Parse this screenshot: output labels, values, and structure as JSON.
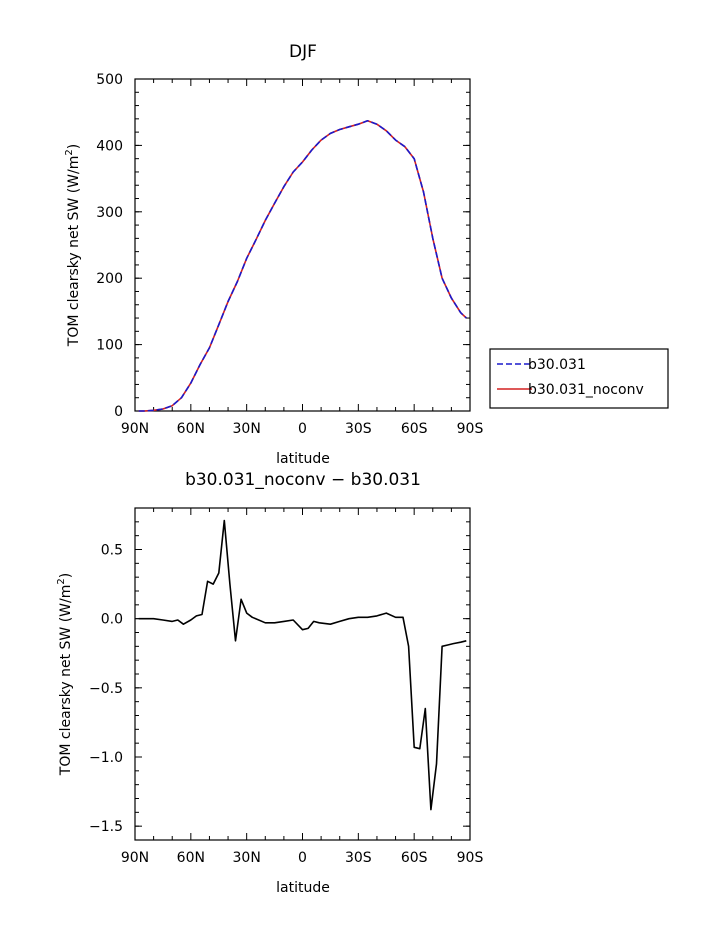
{
  "chart_data": [
    {
      "type": "line",
      "title": "DJF",
      "xlabel": "latitude",
      "ylabel": "TOM clearsky net SW (W/m",
      "ylabel_sup": "2",
      "ylabel_close": ")",
      "xlim": [
        -90,
        90
      ],
      "ylim": [
        0,
        500
      ],
      "x_ticks": [
        -90,
        -60,
        -30,
        0,
        30,
        60,
        90
      ],
      "x_tick_labels": [
        "90N",
        "60N",
        "30N",
        "0",
        "30S",
        "60S",
        "90S"
      ],
      "y_ticks": [
        0,
        100,
        200,
        300,
        400,
        500
      ],
      "y_tick_labels": [
        "0",
        "100",
        "200",
        "300",
        "400",
        "500"
      ],
      "legend_position": "right",
      "series": [
        {
          "name": "b30.031",
          "color": "#1a1acc",
          "style": "dashed",
          "x": [
            -88,
            -85,
            -80,
            -75,
            -70,
            -65,
            -60,
            -55,
            -50,
            -45,
            -40,
            -35,
            -30,
            -25,
            -20,
            -15,
            -10,
            -5,
            0,
            5,
            10,
            15,
            20,
            25,
            30,
            35,
            40,
            45,
            50,
            55,
            60,
            62,
            65,
            70,
            75,
            80,
            85,
            88
          ],
          "y": [
            0,
            0,
            1,
            3,
            8,
            20,
            42,
            70,
            95,
            130,
            165,
            195,
            230,
            258,
            287,
            313,
            338,
            360,
            375,
            393,
            408,
            418,
            424,
            428,
            432,
            437,
            432,
            422,
            408,
            398,
            380,
            360,
            330,
            260,
            200,
            170,
            148,
            140
          ]
        },
        {
          "name": "b30.031_noconv",
          "color": "#d42020",
          "style": "solid",
          "x": [
            -88,
            -85,
            -80,
            -75,
            -70,
            -65,
            -60,
            -55,
            -50,
            -45,
            -40,
            -35,
            -30,
            -25,
            -20,
            -15,
            -10,
            -5,
            0,
            5,
            10,
            15,
            20,
            25,
            30,
            35,
            40,
            45,
            50,
            55,
            60,
            62,
            65,
            70,
            75,
            80,
            85,
            88
          ],
          "y": [
            0,
            0,
            1,
            3,
            8,
            20,
            42,
            70,
            95,
            130,
            165,
            195,
            230,
            258,
            287,
            313,
            338,
            360,
            375,
            393,
            408,
            418,
            424,
            428,
            432,
            437,
            432,
            422,
            408,
            398,
            380,
            360,
            330,
            260,
            200,
            170,
            148,
            140
          ]
        }
      ]
    },
    {
      "type": "line",
      "title": "b30.031_noconv − b30.031",
      "xlabel": "latitude",
      "ylabel": "TOM clearsky net SW (W/m",
      "ylabel_sup": "2",
      "ylabel_close": ")",
      "xlim": [
        -90,
        90
      ],
      "ylim": [
        -1.6,
        0.8
      ],
      "x_ticks": [
        -90,
        -60,
        -30,
        0,
        30,
        60,
        90
      ],
      "x_tick_labels": [
        "90N",
        "60N",
        "30N",
        "0",
        "30S",
        "60S",
        "90S"
      ],
      "y_ticks": [
        -1.5,
        -1.0,
        -0.5,
        0.0,
        0.5
      ],
      "y_tick_labels": [
        "−1.5",
        "−1.0",
        "−0.5",
        "0.0",
        "0.5"
      ],
      "series": [
        {
          "color": "#000000",
          "style": "solid",
          "x": [
            -88,
            -80,
            -75,
            -70,
            -67,
            -64,
            -60,
            -57,
            -54,
            -51,
            -48,
            -45,
            -42,
            -39,
            -36,
            -33,
            -30,
            -27,
            -20,
            -15,
            -10,
            -5,
            0,
            3,
            6,
            9,
            15,
            20,
            25,
            30,
            35,
            40,
            45,
            50,
            54,
            57,
            60,
            63,
            66,
            69,
            72,
            75,
            78,
            81,
            85,
            88
          ],
          "y": [
            0.0,
            0.0,
            -0.01,
            -0.02,
            -0.01,
            -0.04,
            -0.01,
            0.02,
            0.03,
            0.27,
            0.25,
            0.33,
            0.71,
            0.25,
            -0.16,
            0.14,
            0.04,
            0.01,
            -0.03,
            -0.03,
            -0.02,
            -0.01,
            -0.08,
            -0.07,
            -0.02,
            -0.03,
            -0.04,
            -0.02,
            0.0,
            0.01,
            0.01,
            0.02,
            0.04,
            0.01,
            0.01,
            -0.2,
            -0.93,
            -0.94,
            -0.65,
            -1.38,
            -1.05,
            -0.2,
            -0.19,
            -0.18,
            -0.17,
            -0.16
          ]
        }
      ]
    }
  ]
}
